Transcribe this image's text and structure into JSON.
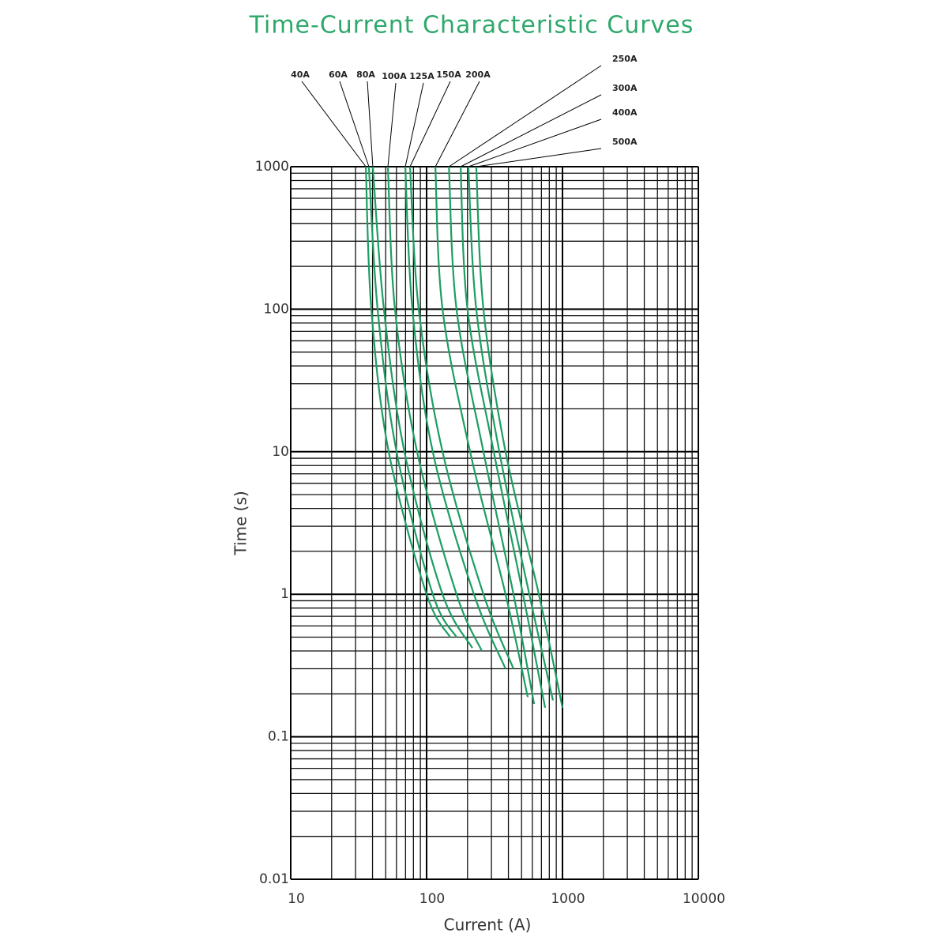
{
  "chart_data": {
    "type": "line",
    "title": "Time-Current Characteristic Curves",
    "x_label": "Current (A)",
    "y_label": "Time (s)",
    "log_x": true,
    "log_y": true,
    "grid": true,
    "minor_grid": true,
    "color": "#1d9e63",
    "xlim": [
      10,
      10000
    ],
    "xticks": [
      10,
      100,
      1000,
      10000
    ],
    "ylim": [
      0.01,
      1000
    ],
    "yticks": [
      1000,
      100,
      10,
      1,
      0.1,
      0.01
    ],
    "series": [
      {
        "name": "40A",
        "x": [
          35.7,
          39.2,
          52.6,
          100,
          149
        ],
        "values": [
          1000,
          100,
          10,
          1,
          0.5
        ]
      },
      {
        "name": "60A",
        "x": [
          37.6,
          43.6,
          60.1,
          111,
          166
        ],
        "values": [
          1000,
          100,
          10,
          1,
          0.5
        ]
      },
      {
        "name": "80A",
        "x": [
          40.2,
          48.5,
          68.7,
          131,
          217
        ],
        "values": [
          1000,
          100,
          10,
          1,
          0.42
        ]
      },
      {
        "name": "100A",
        "x": [
          51.9,
          58.5,
          85.1,
          166,
          255
        ],
        "values": [
          1000,
          100,
          10,
          1,
          0.4
        ]
      },
      {
        "name": "125A",
        "x": [
          69.7,
          78.6,
          111,
          223,
          381
        ],
        "values": [
          1000,
          100,
          10,
          1,
          0.3
        ]
      },
      {
        "name": "150A",
        "x": [
          75.5,
          87.5,
          131,
          262,
          436
        ],
        "values": [
          1000,
          100,
          10,
          1,
          0.3
        ]
      },
      {
        "name": "200A",
        "x": [
          116,
          131,
          209,
          381,
          555
        ],
        "values": [
          1000,
          100,
          10,
          1,
          0.19
        ]
      },
      {
        "name": "250A",
        "x": [
          146,
          166,
          262,
          436,
          618
        ],
        "values": [
          1000,
          100,
          10,
          1,
          0.17
        ]
      },
      {
        "name": "300A",
        "x": [
          178,
          200,
          312,
          512,
          745
        ],
        "values": [
          1000,
          100,
          10,
          1,
          0.16
        ]
      },
      {
        "name": "400A",
        "x": [
          203,
          232,
          343,
          570,
          851
        ],
        "values": [
          1000,
          100,
          10,
          1,
          0.18
        ]
      },
      {
        "name": "500A",
        "x": [
          232,
          262,
          381,
          670,
          1000
        ],
        "values": [
          1000,
          100,
          10,
          1,
          0.16
        ]
      }
    ]
  }
}
